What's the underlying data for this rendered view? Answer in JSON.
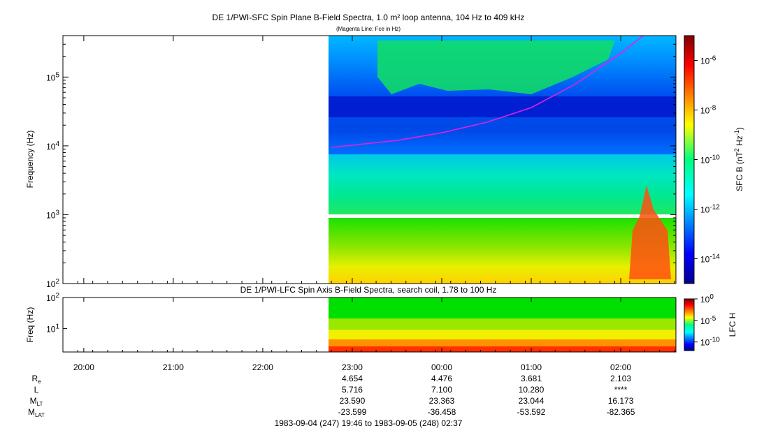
{
  "chart_data": [
    {
      "type": "heatmap",
      "title": "DE 1/PWI-SFC  Spin Plane B-Field Spectra, 1.0 m² loop antenna, 104 Hz to 409 kHz",
      "subtitle": "(Magenta Line: Fce in Hz)",
      "ylabel": "Frequency (Hz)",
      "yscale": "log",
      "ylim": [
        100,
        400000
      ],
      "yticks": [
        {
          "base": "10",
          "exp": "2"
        },
        {
          "base": "10",
          "exp": "3"
        },
        {
          "base": "10",
          "exp": "4"
        },
        {
          "base": "10",
          "exp": "5"
        }
      ],
      "data_start": "22:46",
      "colorbar": {
        "label_prefix": "SFC B (nT",
        "label_sup1": "2",
        "label_mid": " Hz",
        "label_sup2": "-1",
        "label_suffix": ")",
        "scale": "log",
        "range": [
          1e-15,
          1e-05
        ],
        "ticks": [
          {
            "base": "10",
            "exp": "-6"
          },
          {
            "base": "10",
            "exp": "-8"
          },
          {
            "base": "10",
            "exp": "-10"
          },
          {
            "base": "10",
            "exp": "-12"
          },
          {
            "base": "10",
            "exp": "-14"
          }
        ]
      },
      "line_color": "#e020e0",
      "fce_line": [
        {
          "t": "22:46",
          "f": 9500
        },
        {
          "t": "23:30",
          "f": 12000
        },
        {
          "t": "00:00",
          "f": 15500
        },
        {
          "t": "00:30",
          "f": 22000
        },
        {
          "t": "01:00",
          "f": 36000
        },
        {
          "t": "01:30",
          "f": 80000
        },
        {
          "t": "02:00",
          "f": 220000
        },
        {
          "t": "02:15",
          "f": 409000
        }
      ]
    },
    {
      "type": "heatmap",
      "title": "DE 1/PWI-LFC  Spin Axis B-Field Spectra, search coil, 1.78 to 100 Hz",
      "ylabel": "Freq (Hz)",
      "yscale": "log",
      "ylim": [
        1.78,
        100
      ],
      "yticks": [
        {
          "base": "10",
          "exp": "1"
        },
        {
          "base": "10",
          "exp": "2"
        }
      ],
      "colorbar": {
        "label": "LFC H",
        "scale": "log",
        "range": [
          1e-12,
          1
        ],
        "ticks": [
          {
            "base": "10",
            "exp": "0"
          },
          {
            "base": "10",
            "exp": "-5"
          },
          {
            "base": "10",
            "exp": "-10"
          }
        ]
      }
    }
  ],
  "xaxis": {
    "ticks": [
      "20:00",
      "21:00",
      "22:00",
      "23:00",
      "00:00",
      "01:00",
      "02:00"
    ],
    "range": [
      "19:46",
      "02:37"
    ]
  },
  "ephemeris": {
    "rows": [
      {
        "base": "R",
        "sub": "e",
        "values": [
          "4.654",
          "4.476",
          "3.681",
          "2.103"
        ]
      },
      {
        "base": "L",
        "sub": "",
        "values": [
          "5.716",
          "7.100",
          "10.280",
          "****"
        ]
      },
      {
        "base": "M",
        "sub": "LT",
        "values": [
          "23.590",
          "23.363",
          "23.044",
          "16.173"
        ]
      },
      {
        "base": "M",
        "sub": "LAT",
        "values": [
          "-23.599",
          "-36.458",
          "-53.592",
          "-82.365"
        ]
      }
    ],
    "columns": [
      "23:00",
      "00:00",
      "01:00",
      "02:00"
    ]
  },
  "footer": "1983-09-04 (247) 19:46 to 1983-09-05 (248) 02:37"
}
